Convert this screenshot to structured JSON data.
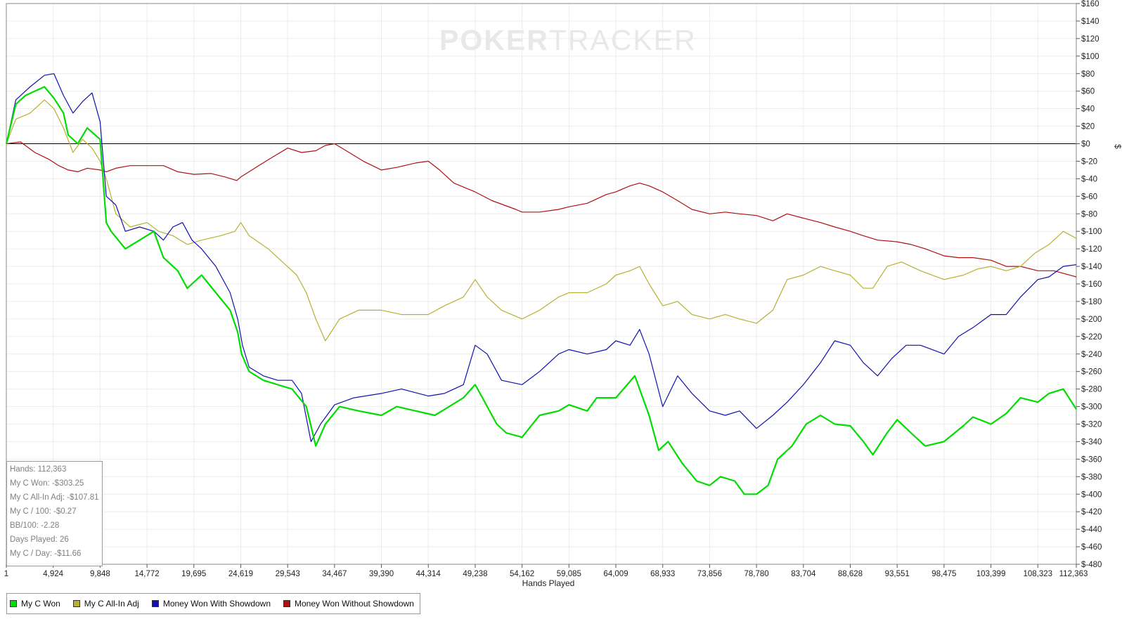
{
  "watermark": {
    "part1": "POKER",
    "part2": "TRACKER"
  },
  "stats": {
    "hands": "Hands: 112,363",
    "won": "My C Won: -$303.25",
    "allin": "My C All-In Adj: -$107.81",
    "per100": "My C / 100: -$0.27",
    "bb100": "BB/100: -2.28",
    "days": "Days Played: 26",
    "perday": "My C / Day: -$11.66"
  },
  "chart_data": {
    "type": "line",
    "xlabel": "Hands Played",
    "ylabel": "$",
    "xlim": [
      1,
      112363
    ],
    "ylim": [
      -480,
      160
    ],
    "x_ticks": [
      "1",
      "4,924",
      "9,848",
      "14,772",
      "19,695",
      "24,619",
      "29,543",
      "34,467",
      "39,390",
      "44,314",
      "49,238",
      "54,162",
      "59,085",
      "64,009",
      "68,933",
      "73,856",
      "78,780",
      "83,704",
      "88,628",
      "93,551",
      "98,475",
      "103,399",
      "108,323",
      "112,363"
    ],
    "y_ticks": [
      "$160",
      "$140",
      "$120",
      "$100",
      "$80",
      "$60",
      "$40",
      "$20",
      "$0",
      "$-20",
      "$-40",
      "$-60",
      "$-80",
      "$-100",
      "$-120",
      "$-140",
      "$-160",
      "$-180",
      "$-200",
      "$-220",
      "$-240",
      "$-260",
      "$-280",
      "$-300",
      "$-320",
      "$-340",
      "$-360",
      "$-380",
      "$-400",
      "$-420",
      "$-440",
      "$-460",
      "$-480"
    ],
    "grid": true,
    "legend_position": "bottom-left",
    "series": [
      {
        "name": "My C Won",
        "color": "#00dd00",
        "x": [
          1,
          1000,
          2000,
          3000,
          4000,
          5000,
          6000,
          6500,
          7500,
          8500,
          9848,
          10500,
          11000,
          12500,
          14000,
          15500,
          16500,
          18000,
          19000,
          20500,
          22000,
          23500,
          24300,
          24700,
          25500,
          27000,
          28500,
          30000,
          31500,
          32500,
          33500,
          35000,
          37000,
          39390,
          41000,
          43000,
          45000,
          46500,
          48000,
          49238,
          50000,
          51500,
          52500,
          54162,
          56000,
          58000,
          59085,
          61000,
          62000,
          64009,
          66000,
          66500,
          67500,
          68500,
          69500,
          71000,
          72500,
          73856,
          75000,
          76500,
          77500,
          78780,
          80000,
          81000,
          82500,
          84000,
          85500,
          87000,
          88628,
          90000,
          91000,
          92500,
          93551,
          95000,
          96500,
          98475,
          100500,
          101500,
          103399,
          105000,
          106500,
          108323,
          109500,
          111000,
          112363
        ],
        "values": [
          0,
          45,
          55,
          60,
          65,
          52,
          35,
          10,
          0,
          18,
          5,
          -90,
          -100,
          -120,
          -110,
          -100,
          -130,
          -145,
          -165,
          -150,
          -170,
          -190,
          -215,
          -240,
          -260,
          -270,
          -275,
          -280,
          -300,
          -345,
          -320,
          -300,
          -305,
          -310,
          -300,
          -305,
          -310,
          -300,
          -290,
          -275,
          -290,
          -320,
          -330,
          -335,
          -310,
          -305,
          -298,
          -305,
          -290,
          -290,
          -265,
          -280,
          -310,
          -350,
          -340,
          -365,
          -385,
          -390,
          -380,
          -385,
          -400,
          -400,
          -390,
          -360,
          -345,
          -320,
          -310,
          -320,
          -322,
          -340,
          -355,
          -330,
          -315,
          -330,
          -345,
          -340,
          -322,
          -312,
          -320,
          -308,
          -290,
          -295,
          -285,
          -280,
          -303
        ]
      },
      {
        "name": "My C All-In Adj",
        "color": "#b8b030",
        "x": [
          1,
          1000,
          2500,
          4000,
          5000,
          6000,
          7000,
          8000,
          9000,
          9848,
          10500,
          11500,
          13000,
          14772,
          16000,
          17500,
          19000,
          20500,
          22500,
          24000,
          24619,
          25500,
          27500,
          29000,
          30500,
          31500,
          32500,
          33500,
          35000,
          37000,
          39390,
          41500,
          44314,
          46000,
          48000,
          49238,
          50500,
          52000,
          54162,
          56000,
          58000,
          59085,
          61000,
          63000,
          64009,
          65500,
          66500,
          67500,
          68933,
          70500,
          72000,
          73856,
          75500,
          77000,
          78780,
          80500,
          82000,
          83704,
          85500,
          87000,
          88628,
          90000,
          91000,
          92500,
          94000,
          96000,
          98475,
          100500,
          102000,
          103399,
          105000,
          106500,
          108000,
          109500,
          111000,
          112363
        ],
        "values": [
          0,
          28,
          35,
          50,
          40,
          18,
          -10,
          5,
          -5,
          -20,
          -40,
          -80,
          -95,
          -90,
          -100,
          -105,
          -115,
          -110,
          -105,
          -100,
          -90,
          -105,
          -120,
          -135,
          -150,
          -170,
          -200,
          -225,
          -200,
          -190,
          -190,
          -195,
          -195,
          -185,
          -175,
          -155,
          -175,
          -190,
          -200,
          -190,
          -175,
          -170,
          -170,
          -160,
          -150,
          -145,
          -140,
          -160,
          -185,
          -180,
          -195,
          -200,
          -195,
          -200,
          -205,
          -190,
          -155,
          -150,
          -140,
          -145,
          -150,
          -165,
          -165,
          -140,
          -135,
          -145,
          -155,
          -150,
          -143,
          -140,
          -145,
          -140,
          -125,
          -115,
          -100,
          -108
        ]
      },
      {
        "name": "Money Won With Showdown",
        "color": "#1010b0",
        "x": [
          1,
          1000,
          2500,
          4000,
          5000,
          6000,
          7000,
          8000,
          9000,
          9848,
          10500,
          11500,
          12500,
          14000,
          15500,
          16500,
          17500,
          18500,
          19500,
          20500,
          22000,
          23500,
          24300,
          24800,
          25500,
          27000,
          28500,
          30000,
          31000,
          32000,
          33000,
          34467,
          36500,
          39390,
          41500,
          44314,
          46000,
          48000,
          49238,
          50500,
          52000,
          54162,
          56000,
          58000,
          59085,
          61000,
          63000,
          64009,
          65500,
          66500,
          67500,
          68933,
          70500,
          72000,
          73856,
          75500,
          77000,
          78780,
          80500,
          82000,
          83704,
          85500,
          87000,
          88628,
          90000,
          91500,
          93000,
          94500,
          96000,
          98475,
          100000,
          101500,
          103399,
          105000,
          106500,
          108323,
          109500,
          111000,
          112363
        ],
        "values": [
          0,
          50,
          65,
          78,
          80,
          55,
          35,
          48,
          58,
          25,
          -60,
          -70,
          -100,
          -95,
          -100,
          -110,
          -95,
          -90,
          -110,
          -120,
          -140,
          -170,
          -200,
          -230,
          -255,
          -265,
          -270,
          -270,
          -285,
          -340,
          -320,
          -298,
          -290,
          -285,
          -280,
          -288,
          -285,
          -275,
          -230,
          -240,
          -270,
          -275,
          -260,
          -240,
          -235,
          -240,
          -235,
          -225,
          -230,
          -212,
          -240,
          -300,
          -265,
          -285,
          -305,
          -310,
          -305,
          -325,
          -310,
          -295,
          -275,
          -250,
          -225,
          -230,
          -250,
          -265,
          -245,
          -230,
          -230,
          -240,
          -220,
          -210,
          -195,
          -195,
          -175,
          -155,
          -152,
          -140,
          -138
        ]
      },
      {
        "name": "Money Won Without Showdown",
        "color": "#b01010",
        "x": [
          1,
          1500,
          3000,
          4500,
          5500,
          6500,
          7500,
          8500,
          9848,
          10500,
          11500,
          13000,
          14772,
          16500,
          18000,
          19695,
          21500,
          23000,
          24200,
          24619,
          25500,
          26500,
          28000,
          29543,
          31000,
          32500,
          33500,
          34467,
          36000,
          37500,
          39390,
          41000,
          43000,
          44314,
          45500,
          47000,
          49238,
          51000,
          53500,
          54162,
          56000,
          58000,
          59085,
          61000,
          63000,
          64009,
          65500,
          66500,
          67500,
          68933,
          70500,
          72000,
          73856,
          75500,
          77000,
          78780,
          80500,
          82000,
          83704,
          85500,
          87000,
          88628,
          90000,
          91500,
          93551,
          95000,
          96500,
          98475,
          100000,
          101500,
          103399,
          105000,
          106500,
          108323,
          110000,
          112363
        ],
        "values": [
          0,
          2,
          -10,
          -18,
          -25,
          -30,
          -32,
          -28,
          -30,
          -32,
          -28,
          -25,
          -25,
          -25,
          -32,
          -35,
          -34,
          -38,
          -42,
          -38,
          -32,
          -25,
          -15,
          -5,
          -10,
          -8,
          -2,
          0,
          -10,
          -20,
          -30,
          -27,
          -22,
          -20,
          -30,
          -45,
          -55,
          -65,
          -75,
          -78,
          -78,
          -75,
          -72,
          -68,
          -58,
          -55,
          -48,
          -45,
          -48,
          -55,
          -65,
          -75,
          -80,
          -78,
          -80,
          -82,
          -88,
          -80,
          -85,
          -90,
          -95,
          -100,
          -105,
          -110,
          -112,
          -115,
          -120,
          -128,
          -130,
          -130,
          -133,
          -140,
          -140,
          -145,
          -145,
          -152
        ]
      }
    ]
  }
}
